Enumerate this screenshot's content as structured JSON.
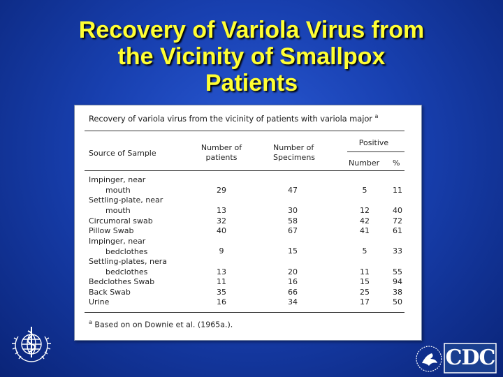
{
  "slide": {
    "title_line1": "Recovery of Variola Virus from",
    "title_line2": "the Vicinity of Smallpox",
    "title_line3": "Patients"
  },
  "table": {
    "title": "Recovery of variola virus from the vicinity of patients with variola major",
    "title_sup": "a",
    "headers": {
      "source": "Source of Sample",
      "patients_l1": "Number of",
      "patients_l2": "patients",
      "specimens_l1": "Number of",
      "specimens_l2": "Specimens",
      "positive": "Positive",
      "number": "Number",
      "percent": "%"
    },
    "rows": [
      {
        "source_l1": "Impinger, near",
        "source_l2": "mouth",
        "patients": "29",
        "specimens": "47",
        "number": "5",
        "percent": "11"
      },
      {
        "source_l1": "Settling-plate, near",
        "source_l2": "mouth",
        "patients": "13",
        "specimens": "30",
        "number": "12",
        "percent": "40"
      },
      {
        "source_l1": "Circumoral swab",
        "patients": "32",
        "specimens": "58",
        "number": "42",
        "percent": "72"
      },
      {
        "source_l1": "Pillow Swab",
        "patients": "40",
        "specimens": "67",
        "number": "41",
        "percent": "61"
      },
      {
        "source_l1": "Impinger, near",
        "source_l2": "bedclothes",
        "patients": "9",
        "specimens": "15",
        "number": "5",
        "percent": "33"
      },
      {
        "source_l1": "Settling-plates, nera",
        "source_l2": "bedclothes",
        "patients": "13",
        "specimens": "20",
        "number": "11",
        "percent": "55"
      },
      {
        "source_l1": "Bedclothes Swab",
        "patients": "11",
        "specimens": "16",
        "number": "15",
        "percent": "94"
      },
      {
        "source_l1": "Back Swab",
        "patients": "35",
        "specimens": "66",
        "number": "25",
        "percent": "38"
      },
      {
        "source_l1": "Urine",
        "patients": "16",
        "specimens": "34",
        "number": "17",
        "percent": "50"
      }
    ],
    "footnote_sup": "a",
    "footnote": "Based on on Downie et al. (1965a.)."
  },
  "logos": {
    "cdc_text": "CDC"
  },
  "colors": {
    "title": "#ffff33",
    "background": "#1840b0",
    "cdc_blue": "#1a3f8f"
  }
}
